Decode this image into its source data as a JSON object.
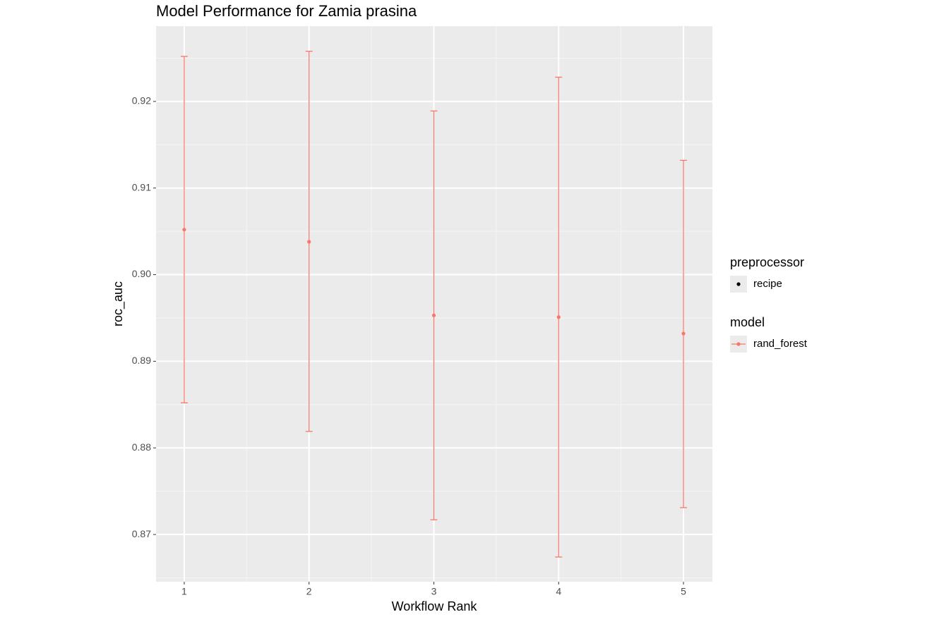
{
  "chart_data": {
    "type": "errorbar",
    "title": "Model Performance for Zamia prasina",
    "x_label": "Workflow Rank",
    "y_label": "roc_auc",
    "x": [
      1,
      2,
      3,
      4,
      5
    ],
    "values": [
      0.9052,
      0.9038,
      0.8953,
      0.8951,
      0.8932
    ],
    "lower": [
      0.8852,
      0.8819,
      0.8717,
      0.8674,
      0.8731
    ],
    "upper": [
      0.9252,
      0.9258,
      0.9189,
      0.9228,
      0.9132
    ],
    "color": "#F8766D",
    "xlim": [
      0.774,
      5.232
    ],
    "xticks": [
      1,
      2,
      3,
      4,
      5
    ],
    "ylim": [
      0.86455,
      0.9287
    ],
    "yticks": [
      0.87,
      0.88,
      0.89,
      {
        "value": 0.9,
        "label": "0.90"
      },
      0.91,
      0.92
    ],
    "grid": true,
    "legends": [
      {
        "title": "preprocessor",
        "labels": [
          "recipe"
        ]
      },
      {
        "title": "model",
        "labels": [
          "rand_forest"
        ]
      }
    ]
  }
}
